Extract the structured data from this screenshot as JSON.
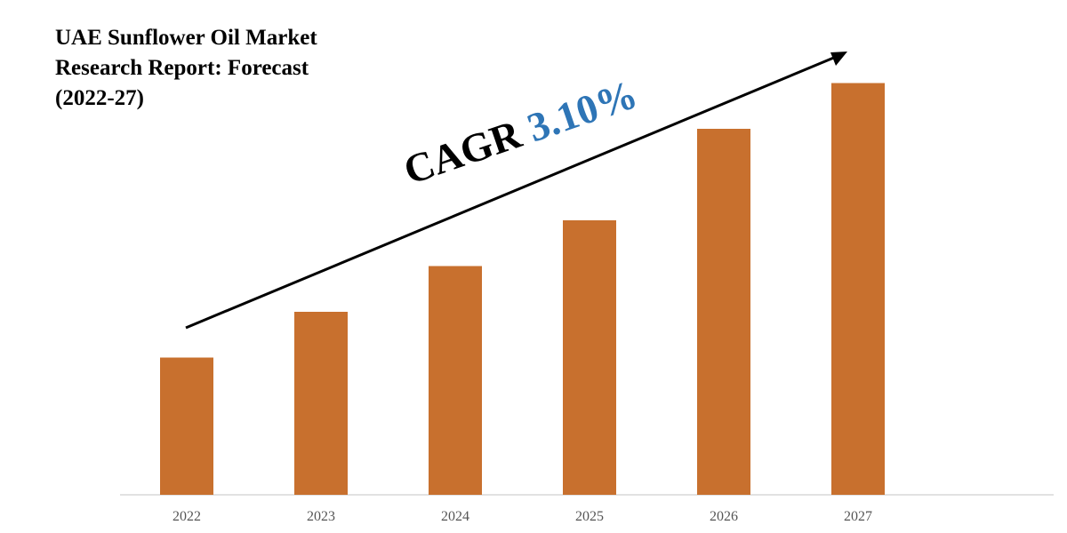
{
  "title_lines": [
    "UAE Sunflower Oil Market",
    "Research Report: Forecast",
    "(2022-27)"
  ],
  "annotation": {
    "word": "CAGR",
    "value": "3.10%"
  },
  "colors": {
    "bar": "#c8702e",
    "axis": "#d9d9d9",
    "arrow": "#000000",
    "cagr_value": "#2e75b6"
  },
  "chart_data": {
    "type": "bar",
    "categories": [
      "2022",
      "2023",
      "2024",
      "2025",
      "2026",
      "2027"
    ],
    "values": [
      30,
      40,
      50,
      60,
      80,
      90
    ],
    "ylim": [
      0,
      100
    ],
    "xlabel": "",
    "ylabel": "",
    "grid": false,
    "legend": "none",
    "y_axis_visible": false,
    "trend_arrow": true
  }
}
